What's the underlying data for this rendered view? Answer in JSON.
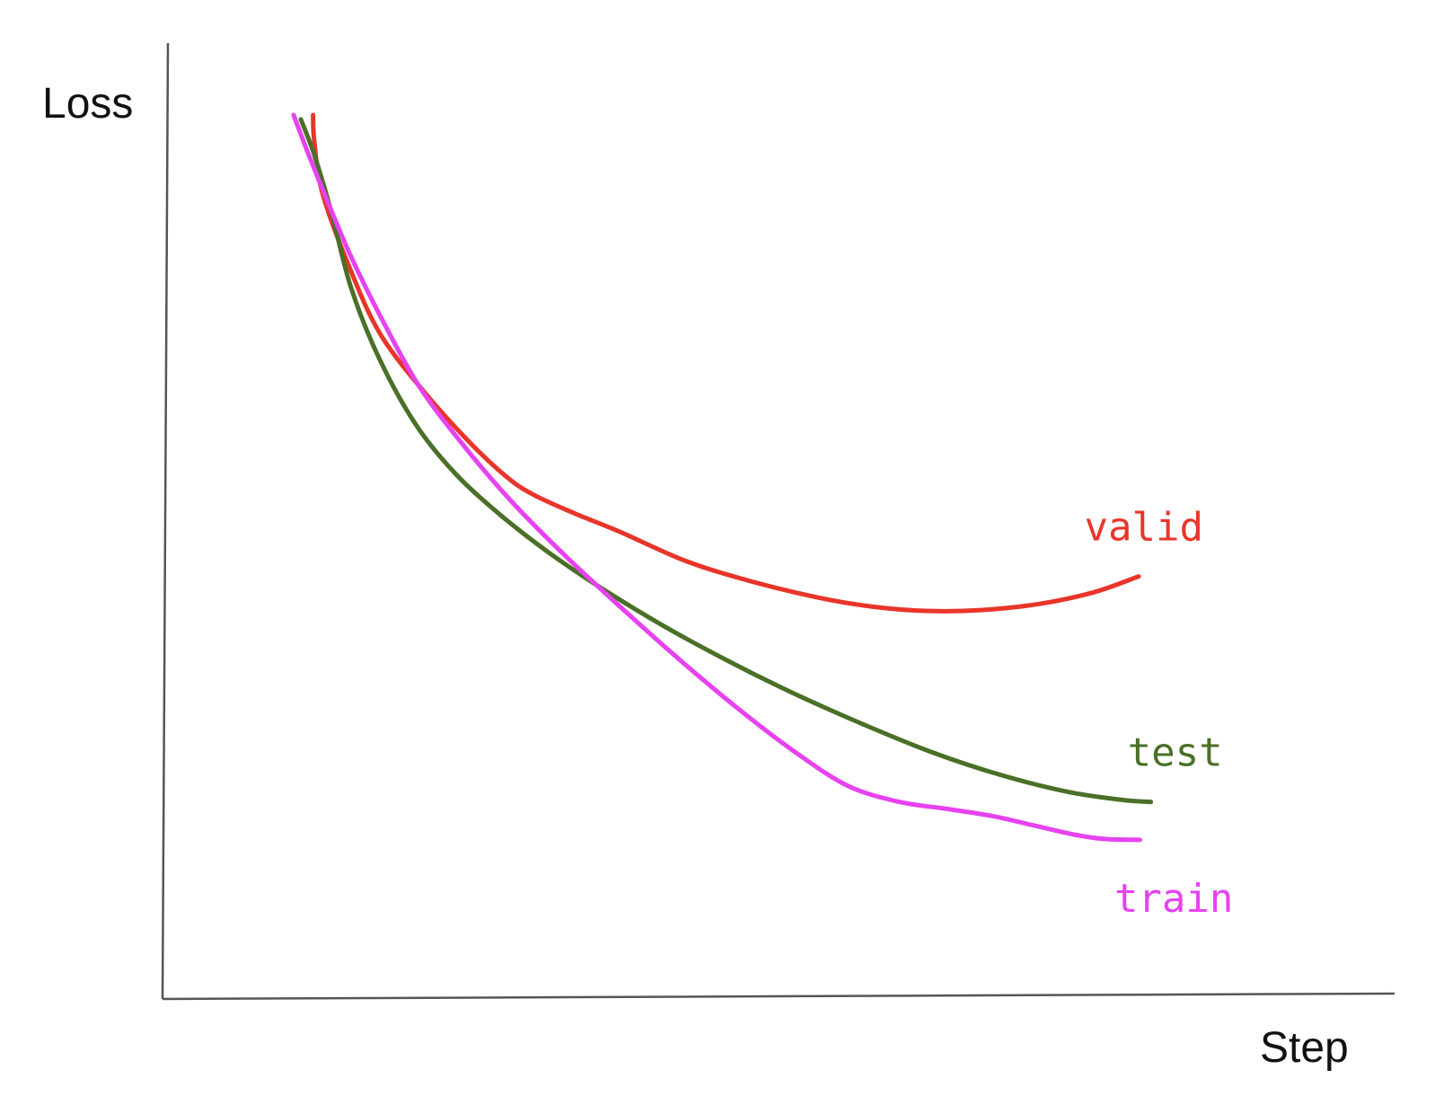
{
  "chart_data": {
    "type": "line",
    "title": "",
    "xlabel": "Step",
    "ylabel": "Loss",
    "grid": false,
    "legend": "inline-labels-at-line-ends",
    "xlim": [
      0,
      100
    ],
    "ylim": [
      0,
      100
    ],
    "series": [
      {
        "name": "valid",
        "color": "#e8352a",
        "x": [
          12.4,
          12.5,
          13.2,
          15.6,
          18.0,
          21.6,
          25.2,
          28.3,
          30.5,
          33.7,
          37.6,
          43.0,
          48.4,
          53.8,
          58.1,
          62.6,
          67.2,
          71.9,
          76.3,
          80.0
        ],
        "y": [
          100.0,
          97.0,
          91.0,
          82.0,
          75.0,
          68.5,
          63.0,
          59.0,
          57.0,
          55.0,
          52.8,
          49.5,
          47.2,
          45.4,
          44.4,
          43.9,
          44.0,
          44.7,
          46.0,
          47.8
        ]
      },
      {
        "name": "test",
        "color": "#4a7028",
        "x": [
          11.4,
          12.5,
          13.9,
          15.5,
          17.8,
          20.8,
          24.0,
          27.7,
          31.7,
          36.2,
          41.1,
          46.3,
          51.7,
          57.4,
          63.1,
          68.8,
          74.3,
          78.8,
          81.0
        ],
        "y": [
          99.5,
          95.5,
          89.0,
          80.5,
          72.5,
          65.0,
          59.5,
          54.8,
          50.5,
          46.3,
          42.2,
          38.3,
          34.6,
          31.1,
          27.9,
          25.3,
          23.4,
          22.5,
          22.3
        ]
      },
      {
        "name": "train",
        "color": "#e642f0",
        "x": [
          10.8,
          11.9,
          13.5,
          15.5,
          18.0,
          21.0,
          24.5,
          28.5,
          33.0,
          38.0,
          42.9,
          47.6,
          52.0,
          56.2,
          60.4,
          64.3,
          68.0,
          71.5,
          74.7,
          77.2,
          80.1
        ],
        "y": [
          100.0,
          96.0,
          90.5,
          84.0,
          77.0,
          69.5,
          63.0,
          56.5,
          50.2,
          43.8,
          37.8,
          32.4,
          27.8,
          24.1,
          22.3,
          21.5,
          20.7,
          19.6,
          18.6,
          18.1,
          18.0
        ]
      }
    ]
  }
}
